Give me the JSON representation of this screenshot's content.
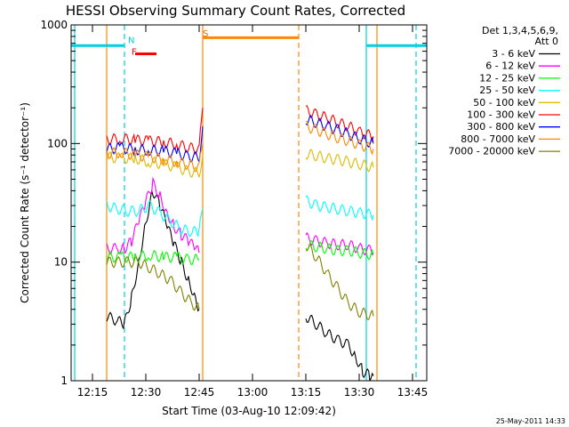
{
  "chart_data": {
    "type": "line",
    "title": "HESSI Observing Summary Count Rates, Corrected",
    "xlabel": "Start Time (03-Aug-10 12:09:42)",
    "ylabel": "Corrected Count Rate (s⁻¹ detector⁻¹)",
    "y_scale": "log",
    "xlim": [
      "12:09",
      "13:49"
    ],
    "ylim": [
      1,
      1000
    ],
    "x_ticks": [
      "12:15",
      "12:30",
      "12:45",
      "13:00",
      "13:15",
      "13:30",
      "13:45"
    ],
    "y_ticks": [
      1,
      10,
      100,
      1000
    ],
    "y_tick_labels": [
      "1",
      "10",
      "100",
      "1000"
    ],
    "legend": {
      "placement": "outside-right",
      "header": [
        "Det 1,3,4,5,6,9,",
        "Att 0"
      ]
    },
    "series": [
      {
        "name": "3 - 6 keV",
        "color": "#000000",
        "segments": [
          [
            [
              "12:19",
              3.5
            ],
            [
              "12:22",
              3.2
            ],
            [
              "12:24",
              3.0
            ],
            [
              "12:26",
              5
            ],
            [
              "12:28",
              10
            ],
            [
              "12:30",
              22
            ],
            [
              "12:32",
              40
            ],
            [
              "12:34",
              30
            ],
            [
              "12:36",
              20
            ],
            [
              "12:38",
              14
            ],
            [
              "12:40",
              10
            ],
            [
              "12:42",
              7
            ],
            [
              "12:44",
              5
            ],
            [
              "12:45",
              4
            ]
          ],
          [
            [
              "13:15",
              3.5
            ],
            [
              "13:18",
              3.0
            ],
            [
              "13:21",
              2.5
            ],
            [
              "13:24",
              2.2
            ],
            [
              "13:27",
              2.0
            ],
            [
              "13:29",
              1.6
            ],
            [
              "13:31",
              1.2
            ],
            [
              "13:33",
              1.1
            ],
            [
              "13:34",
              1.1
            ]
          ]
        ]
      },
      {
        "name": "6 - 12 keV",
        "color": "#ff00ff",
        "segments": [
          [
            [
              "12:19",
              13
            ],
            [
              "12:22",
              13
            ],
            [
              "12:24",
              13
            ],
            [
              "12:26",
              15
            ],
            [
              "12:28",
              22
            ],
            [
              "12:30",
              32
            ],
            [
              "12:32",
              46
            ],
            [
              "12:34",
              36
            ],
            [
              "12:36",
              26
            ],
            [
              "12:38",
              20
            ],
            [
              "12:40",
              17
            ],
            [
              "12:42",
              15
            ],
            [
              "12:44",
              13
            ],
            [
              "12:45",
              12
            ]
          ],
          [
            [
              "13:15",
              16
            ],
            [
              "13:18",
              15
            ],
            [
              "13:21",
              14.5
            ],
            [
              "13:24",
              14
            ],
            [
              "13:27",
              14
            ],
            [
              "13:30",
              13
            ],
            [
              "13:33",
              12.5
            ],
            [
              "13:34",
              12
            ]
          ]
        ]
      },
      {
        "name": "12 - 25 keV",
        "color": "#00ff00",
        "segments": [
          [
            [
              "12:19",
              11
            ],
            [
              "12:23",
              11
            ],
            [
              "12:27",
              11
            ],
            [
              "12:31",
              11.5
            ],
            [
              "12:35",
              11
            ],
            [
              "12:39",
              11
            ],
            [
              "12:42",
              10.5
            ],
            [
              "12:45",
              10.5
            ]
          ],
          [
            [
              "13:15",
              14
            ],
            [
              "13:18",
              13.5
            ],
            [
              "13:21",
              13
            ],
            [
              "13:24",
              12.5
            ],
            [
              "13:27",
              12.5
            ],
            [
              "13:30",
              12
            ],
            [
              "13:34",
              11.5
            ]
          ]
        ]
      },
      {
        "name": "25 - 50 keV",
        "color": "#00ffff",
        "segments": [
          [
            [
              "12:19",
              30
            ],
            [
              "12:22",
              28
            ],
            [
              "12:25",
              27
            ],
            [
              "12:28",
              27
            ],
            [
              "12:31",
              30
            ],
            [
              "12:34",
              26
            ],
            [
              "12:37",
              22
            ],
            [
              "12:40",
              19
            ],
            [
              "12:43",
              18
            ],
            [
              "12:45",
              18
            ],
            [
              "12:46",
              28
            ]
          ],
          [
            [
              "13:15",
              33
            ],
            [
              "13:18",
              30
            ],
            [
              "13:21",
              29
            ],
            [
              "13:24",
              28
            ],
            [
              "13:27",
              27
            ],
            [
              "13:30",
              26
            ],
            [
              "13:34",
              25
            ]
          ]
        ]
      },
      {
        "name": "50 - 100 keV",
        "color": "#ddbb00",
        "segments": [
          [
            [
              "12:19",
              77
            ],
            [
              "12:23",
              75
            ],
            [
              "12:27",
              75
            ],
            [
              "12:31",
              70
            ],
            [
              "12:35",
              67
            ],
            [
              "12:39",
              63
            ],
            [
              "12:42",
              58
            ],
            [
              "12:45",
              56
            ],
            [
              "12:46",
              80
            ]
          ],
          [
            [
              "13:15",
              82
            ],
            [
              "13:18",
              79
            ],
            [
              "13:21",
              75
            ],
            [
              "13:24",
              73
            ],
            [
              "13:27",
              70
            ],
            [
              "13:30",
              67
            ],
            [
              "13:34",
              63
            ]
          ]
        ]
      },
      {
        "name": "100 - 300 keV",
        "color": "#ff0000",
        "segments": [
          [
            [
              "12:19",
              108
            ],
            [
              "12:23",
              110
            ],
            [
              "12:27",
              107
            ],
            [
              "12:31",
              105
            ],
            [
              "12:35",
              103
            ],
            [
              "12:39",
              98
            ],
            [
              "12:42",
              92
            ],
            [
              "12:45",
              90
            ],
            [
              "12:46",
              200
            ]
          ],
          [
            [
              "13:15",
              190
            ],
            [
              "13:18",
              175
            ],
            [
              "13:21",
              165
            ],
            [
              "13:24",
              150
            ],
            [
              "13:27",
              140
            ],
            [
              "13:30",
              125
            ],
            [
              "13:34",
              115
            ]
          ]
        ]
      },
      {
        "name": "300 - 800 keV",
        "color": "#0000ff",
        "segments": [
          [
            [
              "12:19",
              90
            ],
            [
              "12:23",
              92
            ],
            [
              "12:27",
              89
            ],
            [
              "12:31",
              88
            ],
            [
              "12:35",
              86
            ],
            [
              "12:39",
              82
            ],
            [
              "12:42",
              78
            ],
            [
              "12:45",
              76
            ],
            [
              "12:46",
              140
            ]
          ],
          [
            [
              "13:15",
              160
            ],
            [
              "13:18",
              150
            ],
            [
              "13:21",
              140
            ],
            [
              "13:24",
              130
            ],
            [
              "13:27",
              120
            ],
            [
              "13:30",
              110
            ],
            [
              "13:34",
              100
            ]
          ]
        ]
      },
      {
        "name": "800 - 7000 keV",
        "color": "#ff8800",
        "segments": [
          [
            [
              "12:19",
              82
            ],
            [
              "12:23",
              84
            ],
            [
              "12:27",
              80
            ],
            [
              "12:31",
              77
            ],
            [
              "12:35",
              74
            ],
            [
              "12:39",
              70
            ],
            [
              "12:42",
              66
            ],
            [
              "12:45",
              63
            ],
            [
              "12:46",
              100
            ]
          ],
          [
            [
              "13:15",
              140
            ],
            [
              "13:18",
              130
            ],
            [
              "13:21",
              120
            ],
            [
              "13:24",
              112
            ],
            [
              "13:27",
              105
            ],
            [
              "13:30",
              98
            ],
            [
              "13:34",
              90
            ]
          ]
        ]
      },
      {
        "name": "7000 - 20000 keV",
        "color": "#808000",
        "segments": [
          [
            [
              "12:19",
              10
            ],
            [
              "12:22",
              10
            ],
            [
              "12:25",
              10
            ],
            [
              "12:28",
              10
            ],
            [
              "12:31",
              9
            ],
            [
              "12:34",
              8
            ],
            [
              "12:37",
              7
            ],
            [
              "12:40",
              5.5
            ],
            [
              "12:43",
              4.5
            ],
            [
              "12:45",
              4
            ]
          ],
          [
            [
              "13:15",
              14
            ],
            [
              "13:18",
              11
            ],
            [
              "13:21",
              8
            ],
            [
              "13:24",
              6
            ],
            [
              "13:27",
              4.5
            ],
            [
              "13:30",
              3.8
            ],
            [
              "13:34",
              3.5
            ]
          ]
        ]
      }
    ],
    "annotations": [
      {
        "label": "N",
        "color": "#00d0e0",
        "x": "12:24",
        "y": 700
      },
      {
        "label": "F",
        "color": "#ff0000",
        "x": "12:25",
        "y": 560
      },
      {
        "label": "S",
        "color": "#e07000",
        "x": "12:45",
        "y": 800
      }
    ],
    "spans": [
      {
        "kind": "night",
        "color": "#00d0e0",
        "ranges": [
          [
            "12:09",
            "12:24"
          ],
          [
            "13:32",
            "13:49"
          ]
        ],
        "y": 670
      },
      {
        "kind": "flare",
        "color": "#ff0000",
        "ranges": [
          [
            "12:27",
            "12:33"
          ]
        ],
        "y": 570
      },
      {
        "kind": "saa",
        "color": "#ff8800",
        "ranges": [
          [
            "12:46",
            "13:13"
          ]
        ],
        "y": 780
      }
    ],
    "vertical_lines": [
      {
        "x": "12:10",
        "color": "#00d0e0",
        "dashed": false
      },
      {
        "x": "12:24",
        "color": "#00d0e0",
        "dashed": true
      },
      {
        "x": "13:32",
        "color": "#00d0e0",
        "dashed": false
      },
      {
        "x": "13:46",
        "color": "#00d0e0",
        "dashed": true
      },
      {
        "x": "12:19",
        "color": "#ff8800",
        "dashed": false
      },
      {
        "x": "12:46",
        "color": "#ff8800",
        "dashed": false
      },
      {
        "x": "13:13",
        "color": "#ff8800",
        "dashed": true
      },
      {
        "x": "13:35",
        "color": "#ff8800",
        "dashed": false
      }
    ],
    "grid": false
  },
  "footer_date": "25-May-2011 14:33"
}
